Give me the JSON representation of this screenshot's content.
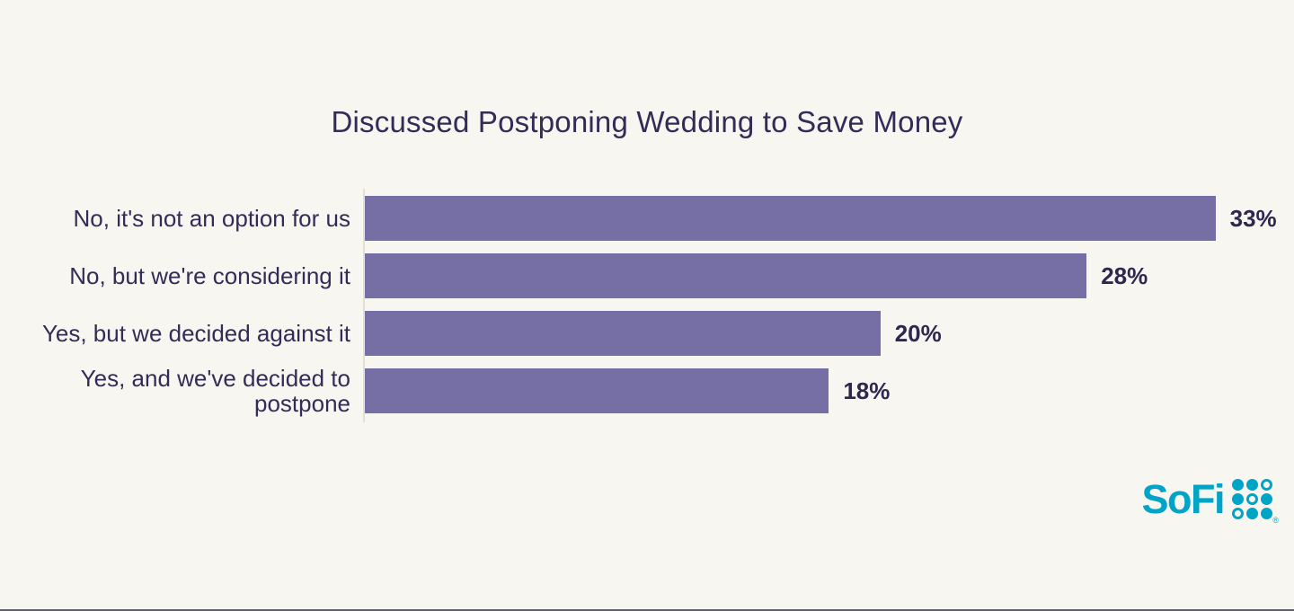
{
  "page": {
    "background": "#F8F6F1"
  },
  "chart_data": {
    "type": "bar",
    "orientation": "horizontal",
    "title": "Discussed Postponing Wedding to Save Money",
    "categories": [
      "No, it's not an option for us",
      "No, but we're considering it",
      "Yes, but we decided against it",
      "Yes, and we've decided to postpone"
    ],
    "values": [
      33,
      28,
      20,
      18
    ],
    "value_labels": [
      "33%",
      "28%",
      "20%",
      "18%"
    ],
    "xlabel": "",
    "ylabel": "",
    "xlim": [
      0,
      35
    ],
    "grid": false,
    "legend": false,
    "bar_color": "#766FA5",
    "title_color": "#332C57",
    "label_color": "#332C57",
    "value_color": "#2E2851",
    "axis_line_color": "#E2DFD9"
  },
  "branding": {
    "logo_text": "SoFi",
    "logo_color": "#00A4C7",
    "registered_mark": "®",
    "dot_grid": [
      [
        "filled",
        "filled",
        "ring"
      ],
      [
        "filled",
        "ring",
        "filled"
      ],
      [
        "ring",
        "filled",
        "filled"
      ]
    ]
  }
}
